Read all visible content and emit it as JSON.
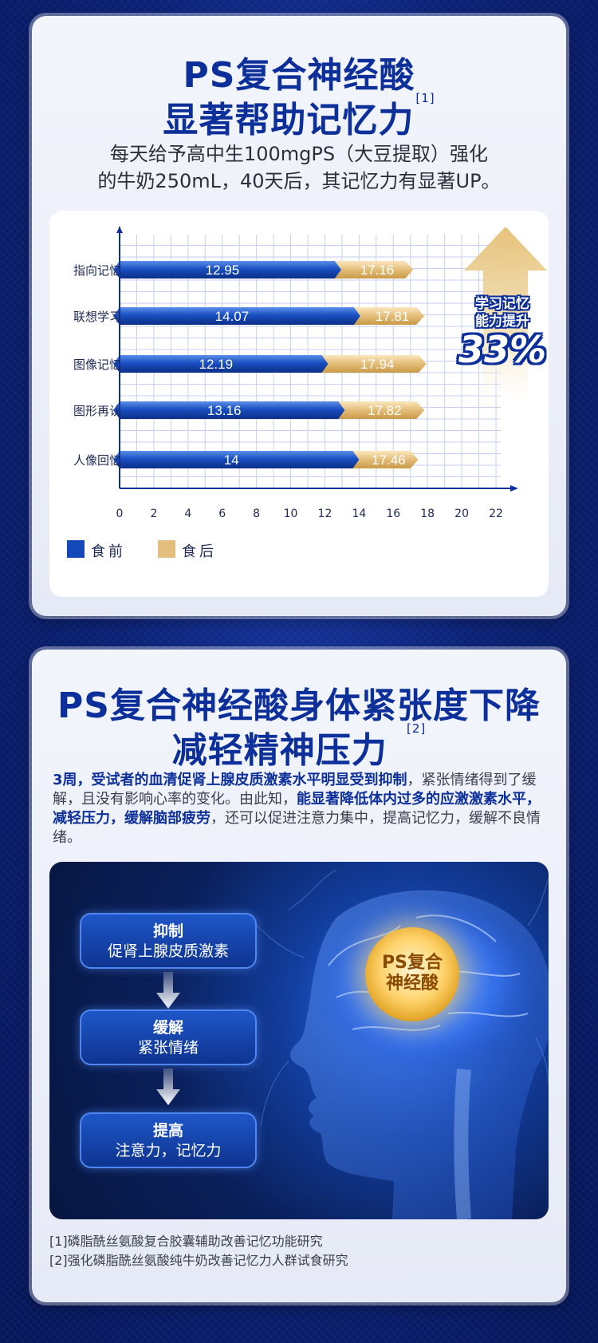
{
  "section1": {
    "title_line1": "PS复合神经酸",
    "title_line2": "显著帮助记忆力",
    "title_ref": "[1]",
    "subtitle_line1": "每天给予高中生100mgPS（大豆提取）强化",
    "subtitle_line2": "的牛奶250mL，40天后，其记忆力有显著UP。",
    "badge_line1": "学习记忆",
    "badge_line2": "能力提升",
    "badge_percent": "33%",
    "legend_before": "食前",
    "legend_after": "食后"
  },
  "chart_data": {
    "type": "bar",
    "orientation": "horizontal",
    "stacked_overlap": true,
    "categories": [
      "指向记忆",
      "联想学习",
      "图像记忆",
      "图形再认",
      "人像回忆"
    ],
    "series": [
      {
        "name": "食前",
        "values": [
          12.95,
          14.07,
          12.19,
          13.16,
          14
        ],
        "color": "#1447b8"
      },
      {
        "name": "食后",
        "values": [
          17.16,
          17.81,
          17.94,
          17.82,
          17.46
        ],
        "color": "#e2bf7e"
      }
    ],
    "x_ticks": [
      "0",
      "2",
      "4",
      "6",
      "8",
      "10",
      "12",
      "14",
      "16",
      "18",
      "20",
      "22"
    ],
    "xlim": [
      0,
      22
    ],
    "grid": true,
    "legend": "bottom-left"
  },
  "section2": {
    "title_line1": "PS复合神经酸身体紧张度下降",
    "title_line2": "减轻精神压力",
    "title_ref": "[2]",
    "para_bold1": "3周，受试者的血清促肾上腺皮质激素水平明显受到抑制",
    "para_text1": "，紧张情绪得到了缓解，且没有影响心率的变化。由此知，",
    "para_bold2": "能显著降低体内过多的应激激素水平，减轻压力，缓解脑部疲劳",
    "para_text2": "，还可以促进注意力集中，提高记忆力，缓解不良情绪。",
    "steps": [
      {
        "title": "抑制",
        "desc": "促肾上腺皮质激素"
      },
      {
        "title": "缓解",
        "desc": "紧张情绪"
      },
      {
        "title": "提高",
        "desc": "注意力，记忆力"
      }
    ],
    "circle_line1": "PS复合",
    "circle_line2": "神经酸",
    "ref1": "[1]磷脂酰丝氨酸复合胶囊辅助改善记忆功能研究",
    "ref2": "[2]强化磷脂酰丝氨酸纯牛奶改善记忆力人群试食研究"
  }
}
